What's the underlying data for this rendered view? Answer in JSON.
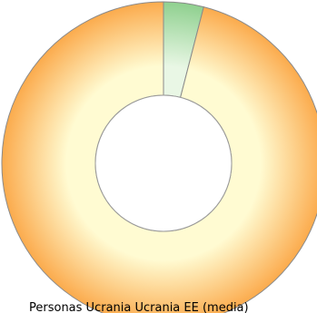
{
  "chart_data": {
    "type": "pie",
    "style": "donut",
    "slices": [
      {
        "value": 4,
        "color": "#8fd08f",
        "highlight": "#e9f7e5"
      },
      {
        "value": 96,
        "color": "#fbab4d",
        "highlight": "#fffbd2"
      }
    ],
    "legend": {
      "text": "Personas Ucrania   Ucrania   EE (media)",
      "placement": "bottom"
    }
  }
}
